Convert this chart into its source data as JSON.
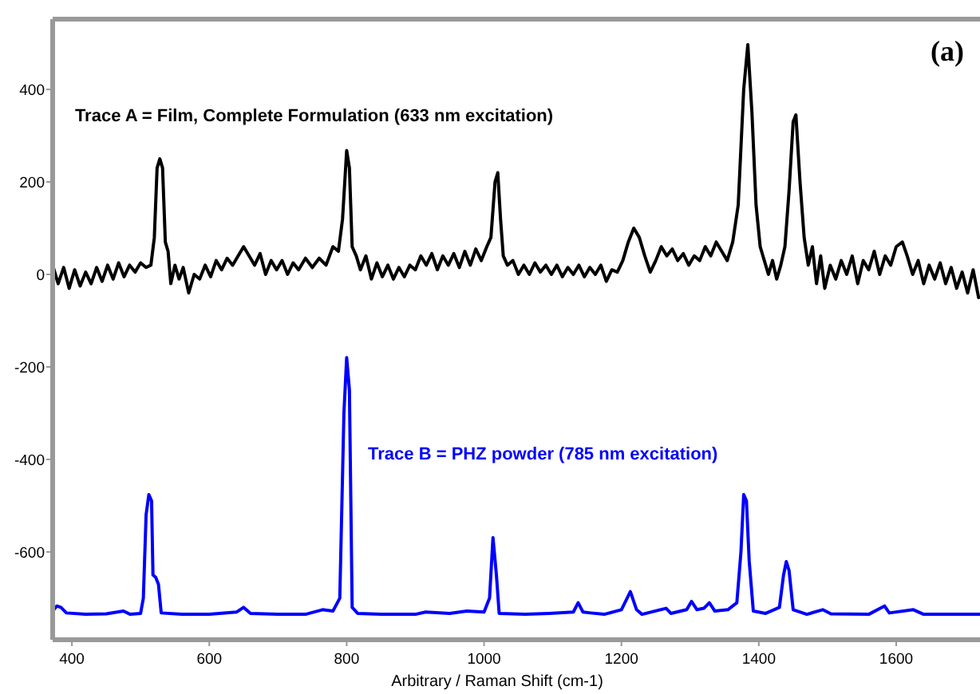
{
  "chart_data": {
    "type": "line",
    "xlabel": "Arbitrary / Raman Shift (cm-1)",
    "annotations": [
      "(a)"
    ],
    "xlim": [
      372,
      1722
    ],
    "ylim": [
      -790,
      552
    ],
    "xticks": [
      400,
      600,
      800,
      1000,
      1200,
      1400,
      1600
    ],
    "yticks": [
      -600,
      -400,
      -200,
      0,
      200,
      400
    ],
    "grid": false,
    "marker": "none",
    "line_style": "solid",
    "series": [
      {
        "name": "Trace A = Film, Complete Formulation (633 nm excitation)",
        "color": "#000000",
        "x": [
          372,
          380,
          388,
          396,
          404,
          412,
          420,
          428,
          436,
          444,
          452,
          460,
          468,
          476,
          484,
          492,
          500,
          508,
          515,
          520,
          524,
          528,
          532,
          536,
          540,
          544,
          550,
          556,
          562,
          570,
          578,
          586,
          594,
          602,
          610,
          618,
          626,
          634,
          642,
          650,
          658,
          666,
          674,
          682,
          690,
          698,
          706,
          714,
          722,
          730,
          740,
          750,
          760,
          770,
          780,
          788,
          794,
          800,
          804,
          808,
          814,
          820,
          828,
          836,
          844,
          852,
          860,
          868,
          876,
          884,
          892,
          900,
          908,
          916,
          924,
          932,
          940,
          948,
          956,
          964,
          972,
          980,
          988,
          996,
          1004,
          1010,
          1016,
          1020,
          1024,
          1028,
          1034,
          1042,
          1050,
          1058,
          1066,
          1074,
          1082,
          1090,
          1098,
          1106,
          1114,
          1122,
          1130,
          1138,
          1146,
          1154,
          1162,
          1170,
          1178,
          1186,
          1194,
          1202,
          1210,
          1218,
          1226,
          1234,
          1242,
          1250,
          1258,
          1266,
          1274,
          1282,
          1290,
          1298,
          1306,
          1314,
          1322,
          1330,
          1338,
          1346,
          1354,
          1362,
          1370,
          1378,
          1384,
          1390,
          1396,
          1402,
          1408,
          1414,
          1420,
          1426,
          1432,
          1438,
          1444,
          1450,
          1454,
          1460,
          1466,
          1472,
          1478,
          1484,
          1490,
          1496,
          1504,
          1512,
          1520,
          1528,
          1536,
          1544,
          1552,
          1560,
          1568,
          1576,
          1584,
          1592,
          1600,
          1609,
          1616,
          1624,
          1632,
          1640,
          1648,
          1656,
          1664,
          1672,
          1680,
          1688,
          1696,
          1704,
          1712,
          1720
        ],
        "values": [
          20,
          -20,
          15,
          -30,
          10,
          -25,
          5,
          -20,
          15,
          -15,
          20,
          -10,
          25,
          -5,
          20,
          5,
          25,
          15,
          20,
          80,
          230,
          250,
          230,
          70,
          50,
          -20,
          20,
          -10,
          15,
          -40,
          0,
          -10,
          20,
          -5,
          30,
          10,
          35,
          20,
          40,
          60,
          40,
          20,
          45,
          0,
          30,
          10,
          30,
          0,
          25,
          10,
          35,
          15,
          35,
          20,
          60,
          50,
          120,
          268,
          230,
          60,
          40,
          10,
          40,
          -10,
          25,
          -5,
          20,
          -10,
          15,
          -5,
          20,
          10,
          40,
          20,
          45,
          10,
          40,
          20,
          45,
          15,
          50,
          20,
          55,
          30,
          60,
          80,
          200,
          220,
          120,
          40,
          20,
          30,
          0,
          20,
          0,
          25,
          5,
          20,
          0,
          20,
          -5,
          15,
          0,
          20,
          -5,
          15,
          0,
          20,
          -15,
          10,
          5,
          30,
          70,
          100,
          80,
          40,
          5,
          30,
          60,
          40,
          55,
          30,
          45,
          20,
          40,
          30,
          60,
          40,
          70,
          50,
          30,
          70,
          150,
          400,
          497,
          350,
          150,
          60,
          30,
          0,
          30,
          -10,
          20,
          60,
          180,
          330,
          345,
          200,
          80,
          20,
          60,
          -20,
          40,
          -30,
          20,
          -10,
          30,
          0,
          40,
          -20,
          30,
          10,
          50,
          0,
          40,
          20,
          60,
          70,
          40,
          0,
          30,
          -20,
          20,
          -10,
          25,
          -20,
          15,
          -30,
          5,
          -40,
          10,
          -50
        ]
      },
      {
        "name": "Trace B = PHZ powder (785 nm excitation)",
        "color": "#0000ff",
        "x": [
          372,
          378,
          384,
          392,
          420,
          450,
          475,
          485,
          500,
          504,
          508,
          512,
          516,
          518,
          522,
          526,
          530,
          560,
          600,
          640,
          650,
          660,
          700,
          740,
          765,
          780,
          790,
          796,
          800,
          804,
          808,
          816,
          850,
          900,
          915,
          950,
          975,
          1000,
          1008,
          1013,
          1018,
          1022,
          1060,
          1095,
          1130,
          1137,
          1144,
          1155,
          1175,
          1200,
          1213,
          1222,
          1230,
          1265,
          1272,
          1295,
          1302,
          1310,
          1320,
          1328,
          1336,
          1355,
          1368,
          1374,
          1378,
          1382,
          1386,
          1392,
          1410,
          1430,
          1436,
          1440,
          1444,
          1450,
          1470,
          1493,
          1505,
          1560,
          1583,
          1590,
          1625,
          1640,
          1722
        ],
        "values": [
          -728,
          -717,
          -720,
          -732,
          -735,
          -734,
          -728,
          -735,
          -733,
          -700,
          -520,
          -476,
          -490,
          -650,
          -655,
          -670,
          -732,
          -735,
          -735,
          -730,
          -720,
          -733,
          -735,
          -735,
          -725,
          -728,
          -700,
          -300,
          -180,
          -250,
          -720,
          -733,
          -735,
          -735,
          -730,
          -733,
          -728,
          -730,
          -700,
          -569,
          -650,
          -733,
          -735,
          -733,
          -730,
          -710,
          -730,
          -732,
          -735,
          -725,
          -686,
          -725,
          -735,
          -722,
          -733,
          -725,
          -707,
          -725,
          -722,
          -710,
          -728,
          -725,
          -710,
          -600,
          -476,
          -490,
          -620,
          -728,
          -733,
          -720,
          -650,
          -621,
          -640,
          -725,
          -735,
          -725,
          -734,
          -735,
          -717,
          -732,
          -725,
          -735,
          -735
        ]
      }
    ]
  }
}
